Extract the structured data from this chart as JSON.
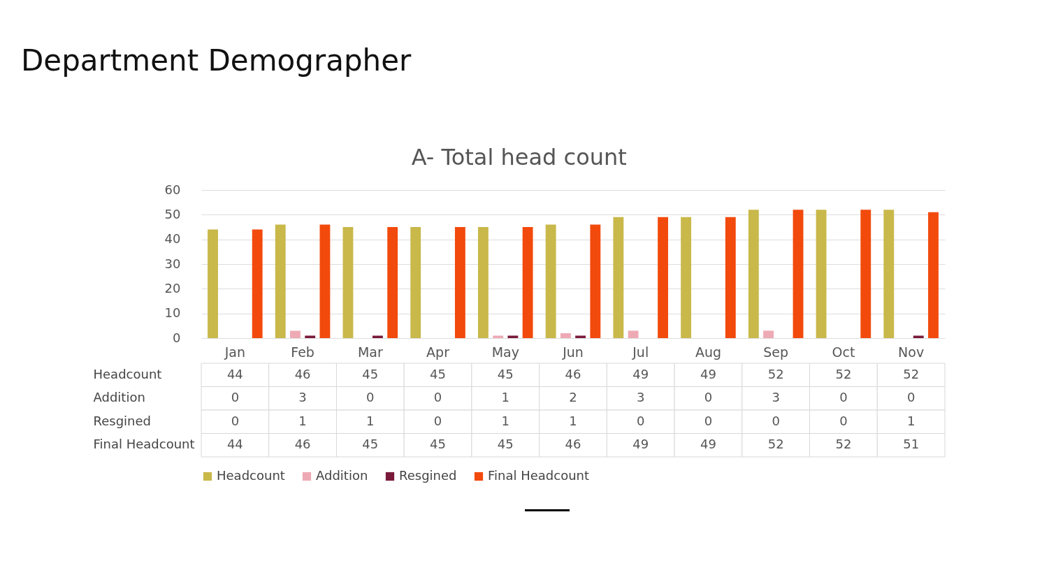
{
  "chart_data": {
    "type": "bar",
    "title": "Department Demographer",
    "subtitle": "A- Total head count",
    "categories": [
      "Jan",
      "Feb",
      "Mar",
      "Apr",
      "May",
      "Jun",
      "Jul",
      "Aug",
      "Sep",
      "Oct",
      "Nov"
    ],
    "series": [
      {
        "name": "Headcount",
        "color": "#c9b84a",
        "values": [
          44,
          46,
          45,
          45,
          45,
          46,
          49,
          49,
          52,
          52,
          52
        ]
      },
      {
        "name": "Addition",
        "color": "#eeaab4",
        "values": [
          0,
          3,
          0,
          0,
          1,
          2,
          3,
          0,
          3,
          0,
          0
        ]
      },
      {
        "name": "Resgined",
        "color": "#7a1a3a",
        "values": [
          0,
          1,
          1,
          0,
          1,
          1,
          0,
          0,
          0,
          0,
          1
        ]
      },
      {
        "name": "Final Headcount",
        "color": "#f24a0c",
        "values": [
          44,
          46,
          45,
          45,
          45,
          46,
          49,
          49,
          52,
          52,
          51
        ]
      }
    ],
    "ylim": [
      0,
      60
    ],
    "yticks": [
      0,
      10,
      20,
      30,
      40,
      50,
      60
    ],
    "grid": "y",
    "legend": "bottom",
    "data_labels": true
  }
}
